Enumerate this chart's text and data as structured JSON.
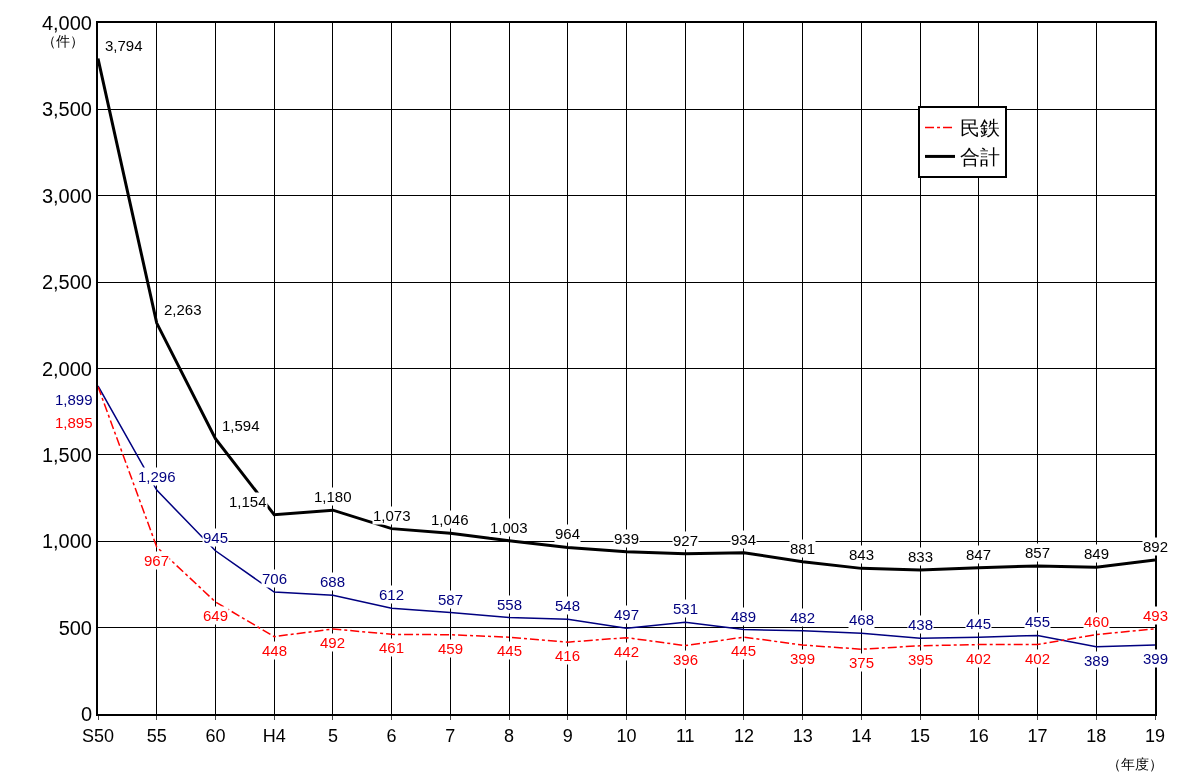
{
  "chart_data": {
    "type": "line",
    "categories": [
      "S50",
      "55",
      "60",
      "H4",
      "5",
      "6",
      "7",
      "8",
      "9",
      "10",
      "11",
      "12",
      "13",
      "14",
      "15",
      "16",
      "17",
      "18",
      "19"
    ],
    "series": [
      {
        "color": "#000080",
        "line_style": "solid",
        "values": [
          1899,
          1296,
          945,
          706,
          688,
          612,
          587,
          558,
          548,
          497,
          531,
          489,
          482,
          468,
          438,
          445,
          455,
          389,
          399
        ],
        "value_labels": [
          "1,899",
          "1,296",
          "945",
          "706",
          "688",
          "612",
          "587",
          "558",
          "548",
          "497",
          "531",
          "489",
          "482",
          "468",
          "438",
          "445",
          "455",
          "389",
          "399"
        ]
      },
      {
        "name": "民鉄",
        "color": "#ff0000",
        "line_style": "dashdot",
        "values": [
          1895,
          967,
          649,
          448,
          492,
          461,
          459,
          445,
          416,
          442,
          396,
          445,
          399,
          375,
          395,
          402,
          402,
          460,
          493
        ],
        "value_labels": [
          "1,895",
          "967",
          "649",
          "448",
          "492",
          "461",
          "459",
          "445",
          "416",
          "442",
          "396",
          "445",
          "399",
          "375",
          "395",
          "402",
          "402",
          "460",
          "493"
        ]
      },
      {
        "name": "合計",
        "color": "#000000",
        "line_style": "solid",
        "values": [
          3794,
          2263,
          1594,
          1154,
          1180,
          1073,
          1046,
          1003,
          964,
          939,
          927,
          934,
          881,
          843,
          833,
          847,
          857,
          849,
          892
        ],
        "value_labels": [
          "3,794",
          "2,263",
          "1,594",
          "1,154",
          "1,180",
          "1,073",
          "1,046",
          "1,003",
          "964",
          "939",
          "927",
          "934",
          "881",
          "843",
          "833",
          "847",
          "857",
          "849",
          "892"
        ]
      }
    ],
    "ylim": [
      0,
      4000
    ],
    "yticks": [
      0,
      500,
      {
        "value": 1000,
        "label": "1,000"
      },
      {
        "value": 1500,
        "label": "1,500"
      },
      {
        "value": 2000,
        "label": "2,000"
      },
      {
        "value": 2500,
        "label": "2,500"
      },
      {
        "value": 3000,
        "label": "3,000"
      },
      {
        "value": 3500,
        "label": "3,500"
      },
      {
        "value": 4000,
        "label": "4,000"
      }
    ],
    "grid": true,
    "legend": "top right",
    "marker": "none",
    "annotations": [
      "（件）",
      "（年度）"
    ]
  }
}
